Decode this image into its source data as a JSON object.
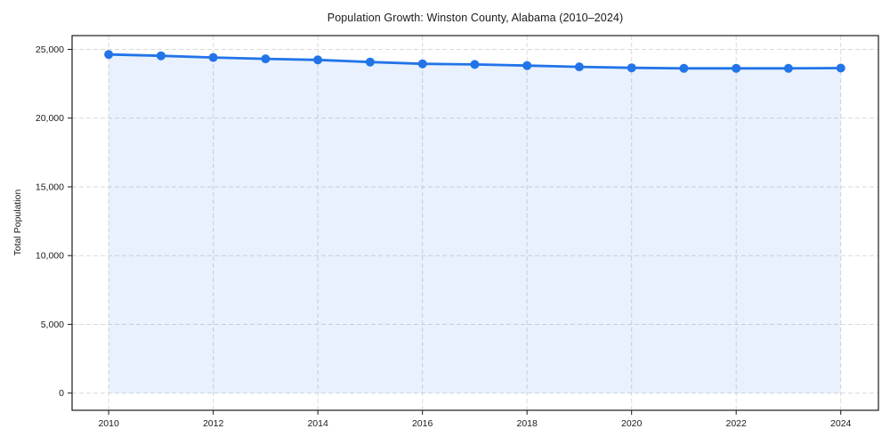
{
  "chart_data": {
    "type": "line",
    "title": "Population Growth: Winston County, Alabama (2010–2024)",
    "xlabel": "",
    "ylabel": "Total Population",
    "x": [
      2010,
      2011,
      2012,
      2013,
      2014,
      2015,
      2016,
      2017,
      2018,
      2019,
      2020,
      2021,
      2022,
      2023,
      2024
    ],
    "series": [
      {
        "name": "Total Population",
        "values": [
          24630,
          24530,
          24410,
          24310,
          24230,
          24080,
          23950,
          23900,
          23820,
          23730,
          23660,
          23620,
          23620,
          23620,
          23640
        ]
      }
    ],
    "xticks": [
      2010,
      2012,
      2014,
      2016,
      2018,
      2020,
      2022,
      2024
    ],
    "yticks": [
      0,
      5000,
      10000,
      15000,
      20000,
      25000
    ],
    "xlim": [
      2009.3,
      2024.72
    ],
    "ylim": [
      -1250,
      26000
    ],
    "grid": "dashed",
    "legend": "none",
    "area_fill": true,
    "colors": {
      "line": "#2274e8",
      "marker": "#2274e8",
      "fill_opacity": 0.1,
      "grid": "#d9d9d9",
      "frame": "#1a1a1a",
      "text": "#1a1a1a",
      "background": "#ffffff"
    }
  }
}
